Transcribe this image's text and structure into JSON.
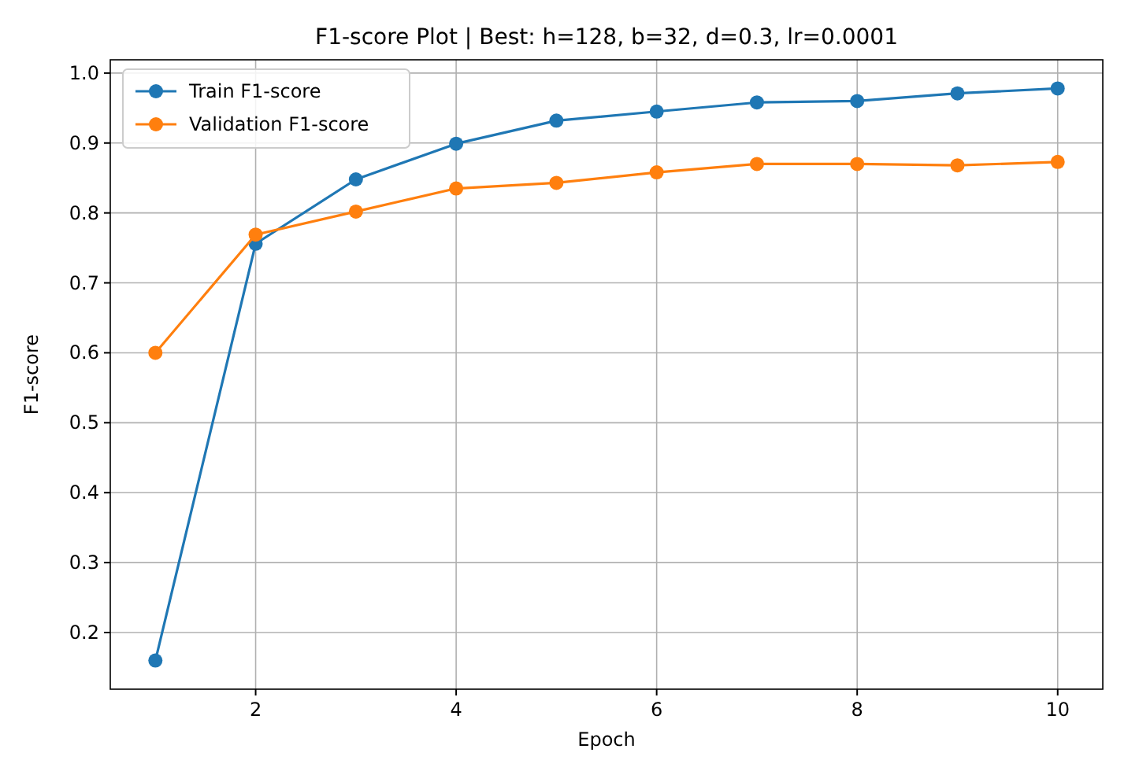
{
  "chart_data": {
    "type": "line",
    "title": "F1-score Plot | Best: h=128, b=32, d=0.3, lr=0.0001",
    "xlabel": "Epoch",
    "ylabel": "F1-score",
    "x": [
      1,
      2,
      3,
      4,
      5,
      6,
      7,
      8,
      9,
      10
    ],
    "series": [
      {
        "name": "Train F1-score",
        "color": "#1f77b4",
        "values": [
          0.16,
          0.756,
          0.848,
          0.899,
          0.932,
          0.945,
          0.958,
          0.96,
          0.971,
          0.978
        ]
      },
      {
        "name": "Validation F1-score",
        "color": "#ff7f0e",
        "values": [
          0.6,
          0.769,
          0.802,
          0.835,
          0.843,
          0.858,
          0.87,
          0.87,
          0.868,
          0.873
        ]
      }
    ],
    "xlim": [
      0.55,
      10.45
    ],
    "xticks": [
      2,
      4,
      6,
      8,
      10
    ],
    "ylim": [
      0.119,
      1.019
    ],
    "yticks": [
      {
        "value": 0.2,
        "label": "0.2"
      },
      {
        "value": 0.3,
        "label": "0.3"
      },
      {
        "value": 0.4,
        "label": "0.4"
      },
      {
        "value": 0.5,
        "label": "0.5"
      },
      {
        "value": 0.6,
        "label": "0.6"
      },
      {
        "value": 0.7,
        "label": "0.7"
      },
      {
        "value": 0.8,
        "label": "0.8"
      },
      {
        "value": 0.9,
        "label": "0.9"
      },
      {
        "value": 1.0,
        "label": "1.0"
      }
    ],
    "grid": true,
    "legend": "top left",
    "marker": "circle",
    "line_style": "solid"
  }
}
